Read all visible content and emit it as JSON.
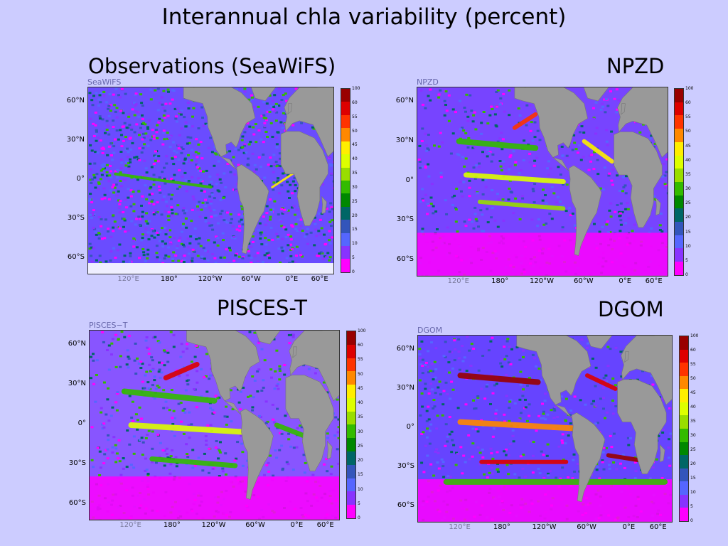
{
  "title": "Interannual chla variability (percent)",
  "headings": {
    "seawifs": "Observations (SeaWiFS)",
    "npzd": "NPZD",
    "pisces": "PISCES-T",
    "dgom": "DGOM"
  },
  "latitude_ticks": [
    "60°N",
    "30°N",
    "0°",
    "30°S",
    "60°S"
  ],
  "longitude_ticks": [
    "120°E",
    "180°",
    "120°W",
    "60°W",
    "0°E",
    "60°E"
  ],
  "colorbar": {
    "ticks": [
      "100",
      "60",
      "55",
      "50",
      "45",
      "40",
      "35",
      "30",
      "25",
      "20",
      "15",
      "10",
      "5",
      "0"
    ],
    "colors": [
      "#990000",
      "#dd0000",
      "#ff3300",
      "#ff8800",
      "#ffee00",
      "#ddff00",
      "#99dd00",
      "#33bb00",
      "#008800",
      "#006666",
      "#3355bb",
      "#5566ff",
      "#8833ff",
      "#ff00ff"
    ]
  },
  "panels": [
    {
      "id": "seawifs",
      "label": "SeaWiFS"
    },
    {
      "id": "npzd",
      "label": "NPZD"
    },
    {
      "id": "pisces",
      "label": "PISCES−T"
    },
    {
      "id": "dgom",
      "label": "DGOM"
    }
  ],
  "colors": {
    "background": "#ccccff",
    "land": "#999999",
    "ocean_low": "#ff00ff",
    "ocean_mid": "#6a4cff",
    "ocean_high": "#ffee00"
  }
}
